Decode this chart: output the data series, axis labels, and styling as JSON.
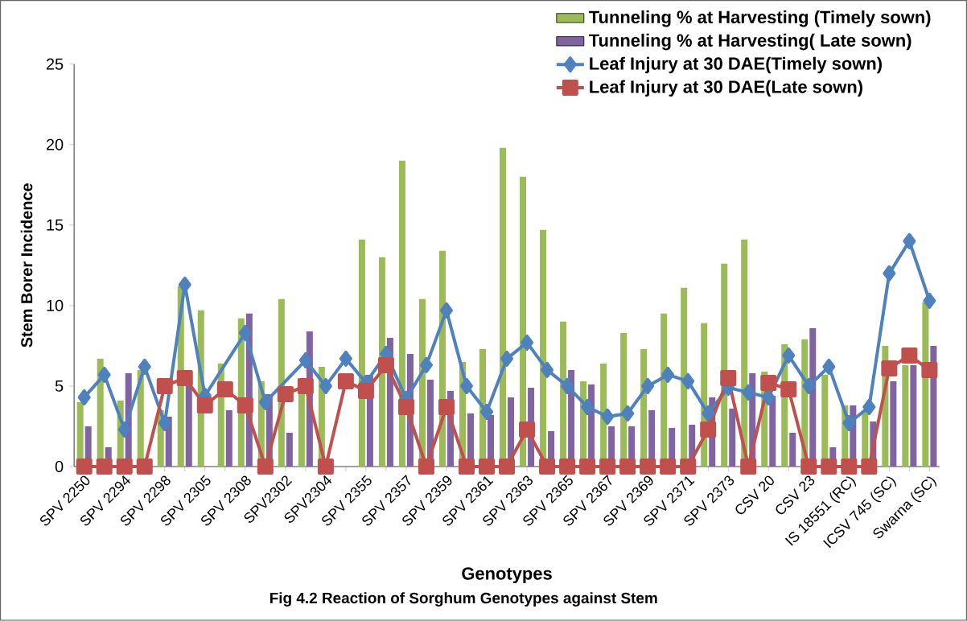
{
  "chart_data": {
    "type": "bar",
    "xlabel": "Genotypes",
    "ylabel": "Stem  Borer  Incidence",
    "annotations": [
      "Fig 4.2   Reaction of  Sorghum Genotypes against Stem"
    ],
    "categories": [
      "SPV 2250",
      null,
      "SPV 2294",
      null,
      "SPV 2298",
      null,
      "SPV 2305",
      null,
      "SPV 2308",
      null,
      "SPV2302",
      null,
      "SPV2304",
      null,
      "SPV 2355",
      null,
      "SPV 2357",
      null,
      "SPV 2359",
      null,
      "SPV 2361",
      null,
      "SPV 2363",
      null,
      "SPV 2365",
      null,
      "SPV 2367",
      null,
      "SPV 2369",
      null,
      "SPV 2371",
      null,
      "SPV 2373",
      null,
      "CSV 20",
      null,
      "CSV 23",
      null,
      "IS 18551 (RC)",
      null,
      "ICSV 745 (SC)",
      null,
      "Swarna (SC)"
    ],
    "series": [
      {
        "name": "Tunneling % at Harvesting (Timely sown)",
        "color": "#9bbb59",
        "values": [
          4.0,
          6.7,
          4.1,
          6.0,
          3.5,
          11.2,
          9.7,
          6.4,
          9.2,
          5.3,
          10.4,
          4.5,
          6.2,
          null,
          14.1,
          13.0,
          19.0,
          10.4,
          13.4,
          6.5,
          7.3,
          19.8,
          18.0,
          14.7,
          9.0,
          5.3,
          6.4,
          8.3,
          7.3,
          9.5,
          11.1,
          8.9,
          12.6,
          14.1,
          5.9,
          7.6,
          7.9,
          5.7,
          3.8,
          3.5,
          7.5,
          6.3,
          10.2
        ]
      },
      {
        "name": "Tunneling % at Harvesting( Late sown)",
        "color": "#8064a2",
        "values": [
          2.5,
          1.2,
          5.8,
          null,
          3.1,
          5.0,
          null,
          3.5,
          9.5,
          4.5,
          2.1,
          8.4,
          null,
          null,
          5.7,
          8.0,
          7.0,
          5.4,
          4.7,
          3.3,
          3.2,
          4.3,
          4.9,
          2.2,
          6.0,
          5.1,
          2.5,
          2.5,
          3.5,
          2.4,
          2.6,
          4.3,
          3.6,
          5.8,
          4.4,
          2.1,
          8.6,
          1.2,
          3.8,
          2.8,
          5.3,
          6.3,
          7.5
        ]
      },
      {
        "name": "Leaf Injury at 30 DAE(Timely sown)",
        "type": "line",
        "marker": "diamond",
        "color": "#4f81bd",
        "values": [
          4.3,
          5.7,
          2.3,
          6.2,
          2.7,
          11.3,
          4.4,
          null,
          8.3,
          4.0,
          null,
          6.6,
          5.0,
          6.7,
          5.2,
          7.0,
          4.2,
          6.3,
          9.7,
          5.0,
          3.4,
          6.7,
          7.7,
          6.0,
          5.0,
          3.7,
          3.1,
          3.3,
          5.0,
          5.7,
          5.3,
          3.3,
          4.9,
          4.6,
          4.3,
          6.9,
          5.0,
          6.2,
          2.7,
          3.7,
          12.0,
          14.0,
          10.3
        ]
      },
      {
        "name": "Leaf Injury at 30 DAE(Late sown)",
        "type": "line",
        "marker": "square",
        "color": "#c0504d",
        "values": [
          0,
          0,
          0,
          0,
          5.0,
          5.5,
          3.8,
          4.8,
          3.8,
          0,
          4.5,
          5.0,
          0,
          5.3,
          4.7,
          6.3,
          3.7,
          0,
          3.7,
          0,
          0,
          0,
          2.3,
          0,
          0,
          0,
          0,
          0,
          0,
          0,
          0,
          2.3,
          5.5,
          0,
          5.2,
          4.8,
          0,
          0,
          0,
          0,
          6.1,
          6.9,
          6.0
        ]
      }
    ],
    "ylim": [
      0,
      25
    ],
    "yticks": [
      0,
      5,
      10,
      15,
      20,
      25
    ],
    "legend": "top right",
    "grid": false
  }
}
